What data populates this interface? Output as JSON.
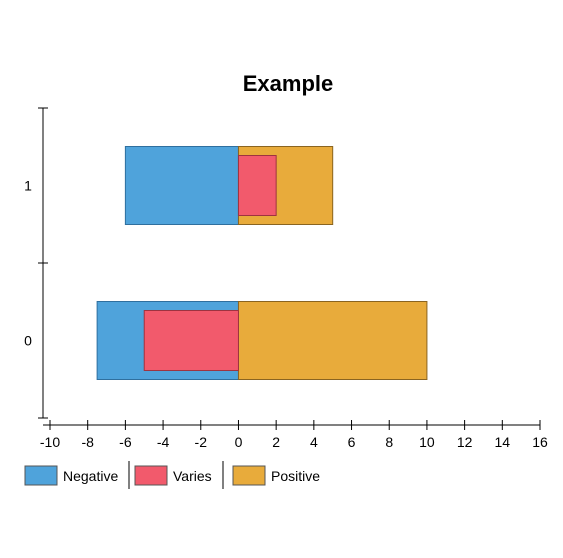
{
  "chart_data": {
    "type": "bar",
    "orientation": "horizontal",
    "title": "Example",
    "xlabel": "",
    "ylabel": "",
    "categories": [
      "0",
      "1"
    ],
    "xlim": [
      -10,
      16
    ],
    "xticks": [
      -10,
      -8,
      -6,
      -4,
      -2,
      0,
      2,
      4,
      6,
      8,
      10,
      12,
      14,
      16
    ],
    "series": [
      {
        "name": "Negative",
        "values": [
          -7.5,
          -6
        ],
        "color": "#4fa3db",
        "stroke": "#2f6f9e"
      },
      {
        "name": "Positive",
        "values": [
          10,
          5
        ],
        "color": "#e8ab3b",
        "stroke": "#8a6420"
      },
      {
        "name": "Varies",
        "values": [
          -5,
          2
        ],
        "color": "#f25a6c",
        "stroke": "#9e3340"
      }
    ],
    "legend": {
      "position": "bottom-left",
      "entries": [
        {
          "label": "Negative",
          "color": "#4fa3db"
        },
        {
          "label": "Varies",
          "color": "#f25a6c"
        },
        {
          "label": "Positive",
          "color": "#e8ab3b"
        }
      ]
    },
    "grid": false
  }
}
